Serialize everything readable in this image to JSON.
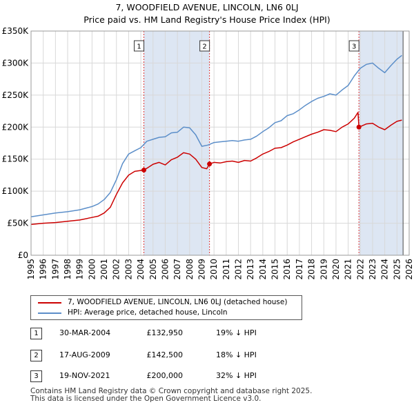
{
  "title": {
    "line1": "7, WOODFIELD AVENUE, LINCOLN, LN6 0LJ",
    "line2": "Price paid vs. HM Land Registry's House Price Index (HPI)"
  },
  "colors": {
    "property": "#cc0000",
    "hpi": "#5b8ec9",
    "sale_band": "#dde6f3",
    "marker_line": "#dd3333",
    "grid": "#d8d8d8"
  },
  "chart_data": {
    "type": "line",
    "title": "Price paid vs. HM Land Registry's House Price Index (HPI)",
    "xlabel": "",
    "ylabel": "",
    "xlim": [
      1995,
      2026
    ],
    "ylim": [
      0,
      350000
    ],
    "y_ticks": [
      0,
      50000,
      100000,
      150000,
      200000,
      250000,
      300000,
      350000
    ],
    "y_tick_labels": [
      "£0",
      "£50K",
      "£100K",
      "£150K",
      "£200K",
      "£250K",
      "£300K",
      "£350K"
    ],
    "x_ticks": [
      1995,
      1996,
      1997,
      1998,
      1999,
      2000,
      2001,
      2002,
      2003,
      2004,
      2005,
      2006,
      2007,
      2008,
      2009,
      2010,
      2011,
      2012,
      2013,
      2014,
      2015,
      2016,
      2017,
      2018,
      2019,
      2020,
      2021,
      2022,
      2023,
      2024,
      2025,
      2026
    ],
    "grid": true,
    "series": [
      {
        "name": "7, WOODFIELD AVENUE, LINCOLN, LN6 0LJ (detached house)",
        "x": [
          1995.0,
          1996.0,
          1997.0,
          1998.0,
          1999.0,
          2000.0,
          2000.5,
          2001.0,
          2001.5,
          2002.0,
          2002.5,
          2003.0,
          2003.5,
          2004.25,
          2004.6,
          2005.0,
          2005.5,
          2006.0,
          2006.5,
          2007.0,
          2007.5,
          2008.0,
          2008.5,
          2009.0,
          2009.4,
          2009.63,
          2010.0,
          2010.5,
          2011.0,
          2011.5,
          2012.0,
          2012.5,
          2013.0,
          2013.5,
          2014.0,
          2014.5,
          2015.0,
          2015.5,
          2016.0,
          2016.5,
          2017.0,
          2017.5,
          2018.0,
          2018.5,
          2019.0,
          2019.5,
          2020.0,
          2020.5,
          2021.0,
          2021.5,
          2021.8,
          2021.88,
          2022.0,
          2022.5,
          2023.0,
          2023.5,
          2024.0,
          2024.5,
          2025.0,
          2025.4
        ],
        "values": [
          48000,
          50000,
          51000,
          53000,
          55000,
          59000,
          61000,
          66000,
          75000,
          95000,
          113000,
          125000,
          131000,
          132950,
          137000,
          142000,
          145000,
          141000,
          149000,
          153000,
          160000,
          158000,
          150000,
          137000,
          135000,
          142500,
          145000,
          144000,
          146000,
          147000,
          145000,
          148000,
          147000,
          152000,
          158000,
          162000,
          167000,
          168000,
          172000,
          177000,
          181000,
          185000,
          189000,
          192000,
          196000,
          195000,
          193000,
          200000,
          205000,
          214000,
          223000,
          200000,
          201000,
          205000,
          206000,
          200000,
          196000,
          203000,
          209000,
          211000
        ]
      },
      {
        "name": "HPI: Average price, detached house, Lincoln",
        "x": [
          1995.0,
          1996.0,
          1997.0,
          1998.0,
          1999.0,
          2000.0,
          2000.5,
          2001.0,
          2001.5,
          2002.0,
          2002.5,
          2003.0,
          2003.5,
          2004.0,
          2004.5,
          2005.0,
          2005.5,
          2006.0,
          2006.5,
          2007.0,
          2007.5,
          2008.0,
          2008.5,
          2009.0,
          2009.5,
          2010.0,
          2010.5,
          2011.0,
          2011.5,
          2012.0,
          2012.5,
          2013.0,
          2013.5,
          2014.0,
          2014.5,
          2015.0,
          2015.5,
          2016.0,
          2016.5,
          2017.0,
          2017.5,
          2018.0,
          2018.5,
          2019.0,
          2019.5,
          2020.0,
          2020.5,
          2021.0,
          2021.5,
          2022.0,
          2022.5,
          2023.0,
          2023.5,
          2024.0,
          2024.5,
          2025.0,
          2025.4
        ],
        "values": [
          60000,
          63000,
          66000,
          68000,
          71000,
          76000,
          80000,
          87000,
          98000,
          118000,
          143000,
          158000,
          163000,
          168000,
          178000,
          181000,
          184000,
          185000,
          191000,
          192000,
          200000,
          199000,
          188000,
          170000,
          172000,
          176000,
          177000,
          178000,
          179000,
          178000,
          180000,
          181000,
          186000,
          193000,
          199000,
          207000,
          210000,
          218000,
          221000,
          227000,
          234000,
          240000,
          245000,
          248000,
          252000,
          250000,
          258000,
          265000,
          280000,
          292000,
          298000,
          300000,
          292000,
          285000,
          296000,
          306000,
          312000
        ]
      }
    ],
    "sales": [
      {
        "num": "1",
        "x": 2004.25,
        "value": 132950
      },
      {
        "num": "2",
        "x": 2009.63,
        "value": 142500
      },
      {
        "num": "3",
        "x": 2021.88,
        "value": 200000
      }
    ],
    "future_start": 2025.5
  },
  "legend": {
    "property_label": "7, WOODFIELD AVENUE, LINCOLN, LN6 0LJ (detached house)",
    "hpi_label": "HPI: Average price, detached house, Lincoln"
  },
  "transactions": [
    {
      "num": "1",
      "date": "30-MAR-2004",
      "price": "£132,950",
      "hpi": "19% ↓ HPI"
    },
    {
      "num": "2",
      "date": "17-AUG-2009",
      "price": "£142,500",
      "hpi": "18% ↓ HPI"
    },
    {
      "num": "3",
      "date": "19-NOV-2021",
      "price": "£200,000",
      "hpi": "32% ↓ HPI"
    }
  ],
  "footer": {
    "line1": "Contains HM Land Registry data © Crown copyright and database right 2025.",
    "line2": "This data is licensed under the Open Government Licence v3.0."
  }
}
